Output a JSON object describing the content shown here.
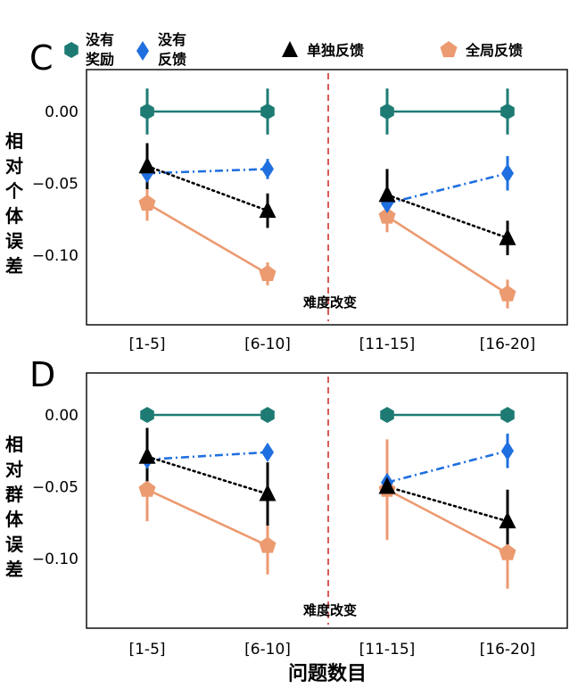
{
  "colors": {
    "no_reward": "#1e7b74",
    "no_feedback": "#1f6fe0",
    "individual": "#000000",
    "global": "#ec9a70",
    "change_line": "#d0312d"
  },
  "legend": [
    {
      "key": "no_reward",
      "line1": "没有",
      "line2": "奖励",
      "marker": "hexagon"
    },
    {
      "key": "no_feedback",
      "line1": "没有",
      "line2": "反馈",
      "marker": "diamond"
    },
    {
      "key": "individual",
      "line1": "单独反馈",
      "line2": "",
      "marker": "triangle"
    },
    {
      "key": "global",
      "line1": "全局反馈",
      "line2": "",
      "marker": "pentagon"
    }
  ],
  "xlabel": "问题数目",
  "chart_data": [
    {
      "type": "line",
      "panel_label": "C",
      "ylabel": "相对个体误差",
      "categories": [
        "[1-5]",
        "[6-10]",
        "[11-15]",
        "[16-20]"
      ],
      "yticks": [
        0.0,
        -0.05,
        -0.1
      ],
      "ytick_labels": [
        "0.00",
        "−0.05",
        "−0.10"
      ],
      "ylim": [
        -0.148,
        0.022
      ],
      "annotation": "难度改变",
      "series": [
        {
          "key": "no_reward",
          "name": "没有奖励",
          "values": [
            0.0,
            0.0,
            0.0,
            0.0
          ],
          "err": [
            0.016,
            0.016,
            0.016,
            0.016
          ],
          "style": "solid"
        },
        {
          "key": "no_feedback",
          "name": "没有反馈",
          "values": [
            -0.043,
            -0.04,
            -0.064,
            -0.043
          ],
          "err": [
            0.007,
            0.007,
            0.007,
            0.012
          ],
          "style": "dashdot"
        },
        {
          "key": "individual",
          "name": "单独反馈",
          "values": [
            -0.038,
            -0.069,
            -0.058,
            -0.088
          ],
          "err": [
            0.016,
            0.012,
            0.018,
            0.012
          ],
          "style": "dotted"
        },
        {
          "key": "global",
          "name": "全局反馈",
          "values": [
            -0.064,
            -0.113,
            -0.073,
            -0.127
          ],
          "err": [
            0.012,
            0.008,
            0.011,
            0.01
          ],
          "style": "solid"
        }
      ]
    },
    {
      "type": "line",
      "panel_label": "D",
      "ylabel": "相对群体误差",
      "categories": [
        "[1-5]",
        "[6-10]",
        "[11-15]",
        "[16-20]"
      ],
      "yticks": [
        0.0,
        -0.05,
        -0.1
      ],
      "ytick_labels": [
        "0.00",
        "−0.05",
        "−0.10"
      ],
      "ylim": [
        -0.148,
        0.022
      ],
      "annotation": "难度改变",
      "series": [
        {
          "key": "no_reward",
          "name": "没有奖励",
          "values": [
            0.0,
            0.0,
            0.0,
            0.0
          ],
          "err": [
            0.0,
            0.0,
            0.0,
            0.0
          ],
          "style": "solid"
        },
        {
          "key": "no_feedback",
          "name": "没有反馈",
          "values": [
            -0.031,
            -0.026,
            -0.047,
            -0.025
          ],
          "err": [
            0.005,
            0.005,
            0.005,
            0.012
          ],
          "style": "dashdot"
        },
        {
          "key": "individual",
          "name": "单独反馈",
          "values": [
            -0.029,
            -0.055,
            -0.05,
            -0.074
          ],
          "err": [
            0.02,
            0.022,
            0.005,
            0.022
          ],
          "style": "dotted"
        },
        {
          "key": "global",
          "name": "全局反馈",
          "values": [
            -0.052,
            -0.091,
            -0.052,
            -0.096
          ],
          "err": [
            0.022,
            0.02,
            0.035,
            0.025
          ],
          "style": "solid"
        }
      ]
    }
  ]
}
